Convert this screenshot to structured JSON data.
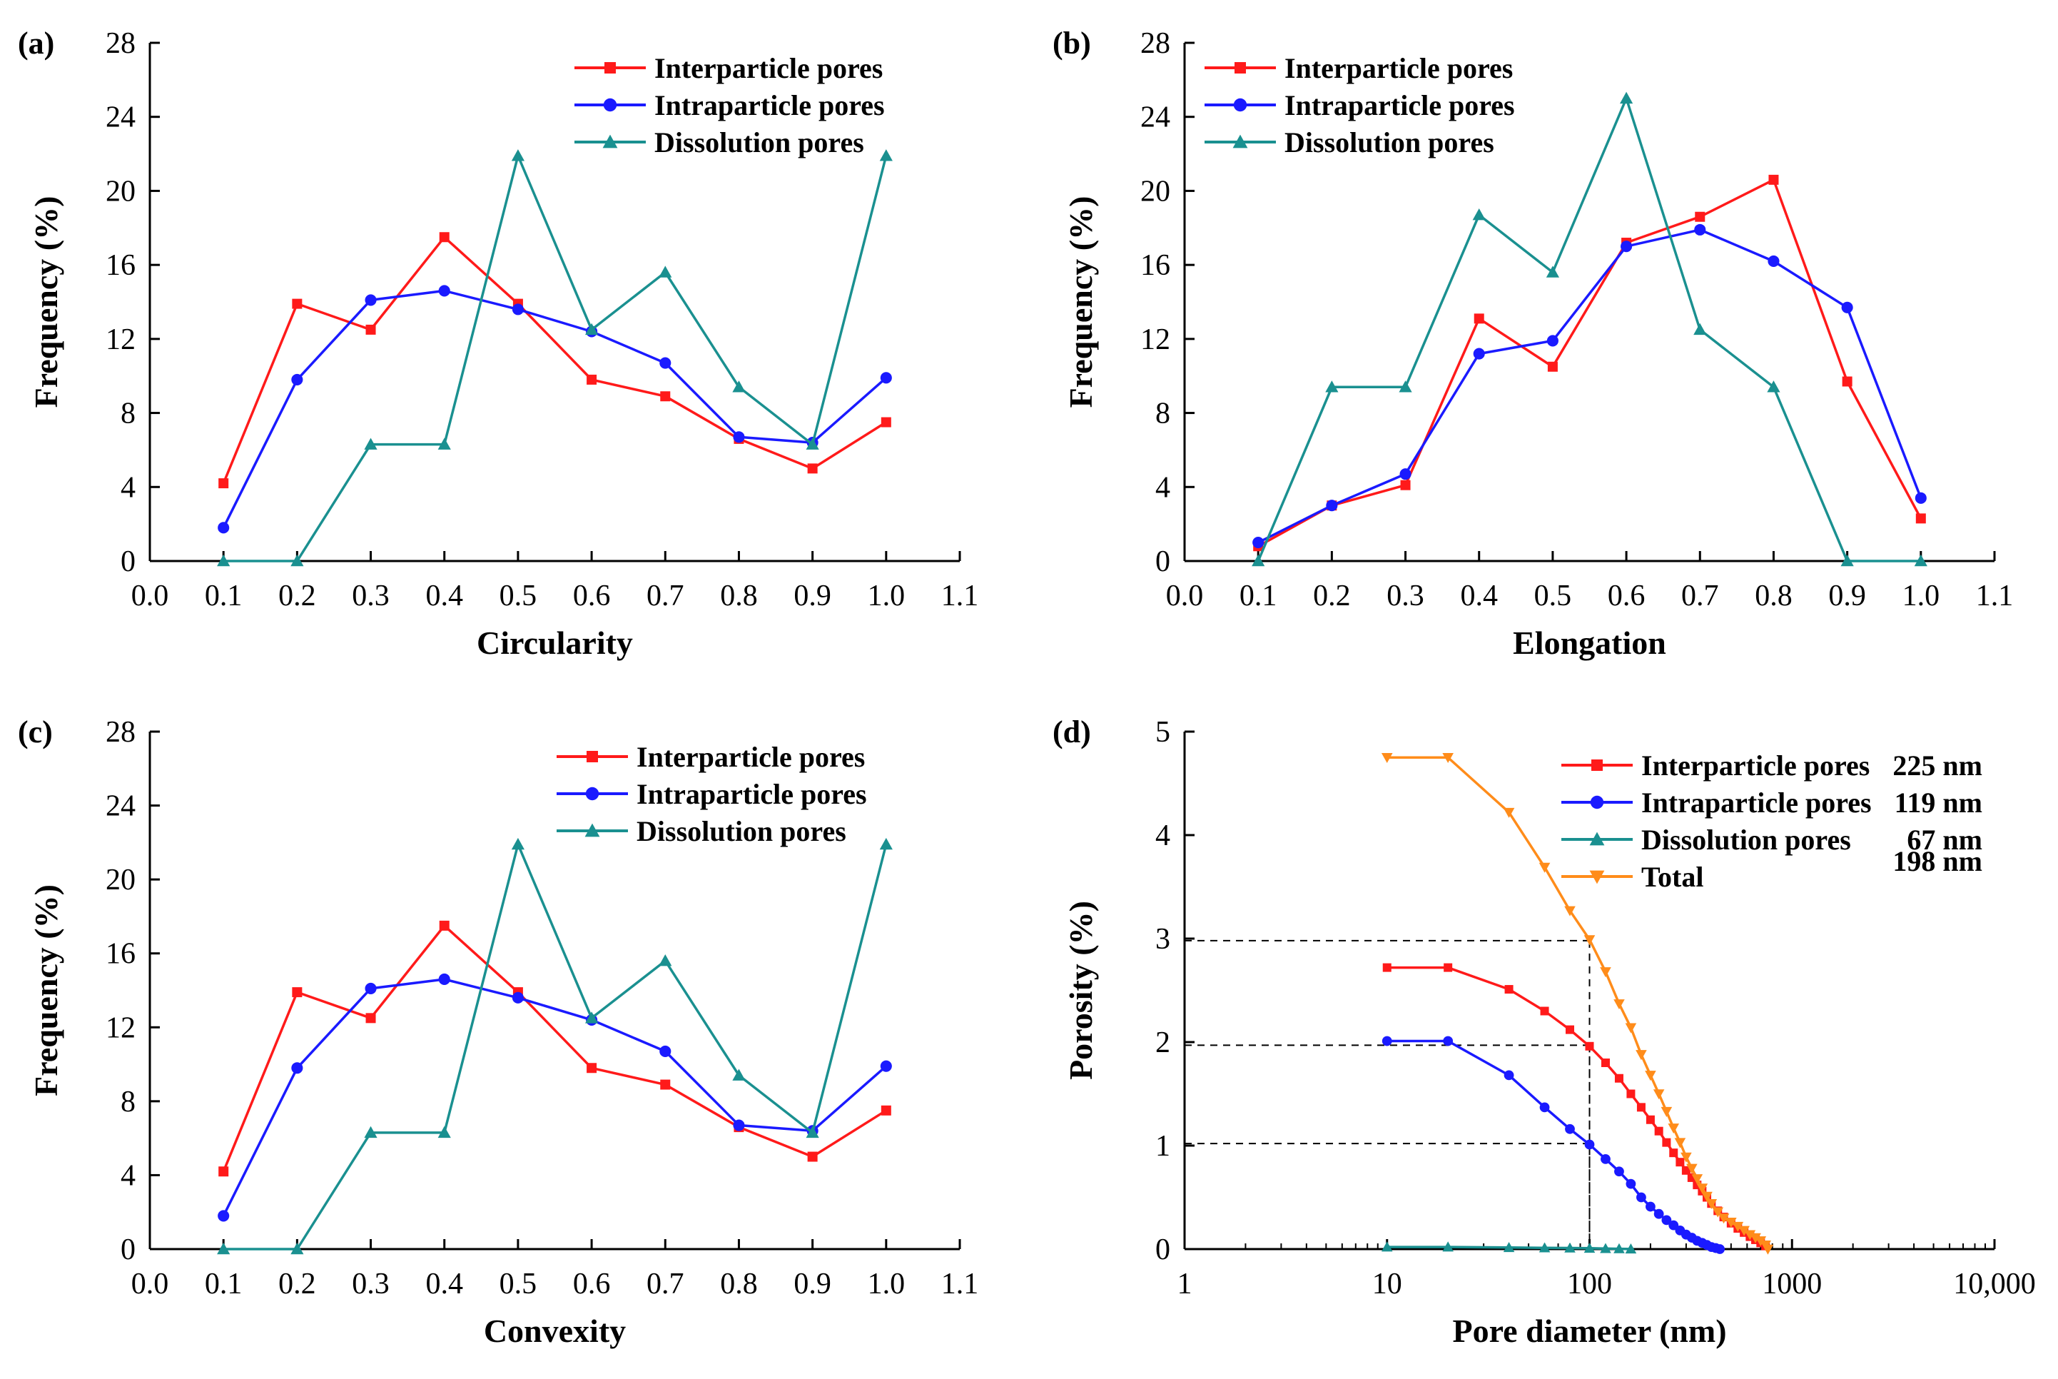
{
  "colors": {
    "interparticle": "#ff1a1a",
    "intraparticle": "#1a1aff",
    "dissolution": "#1a9090",
    "total": "#ff8c1a",
    "axis": "#000000",
    "guide": "#000000"
  },
  "chart_data": [
    {
      "id": "a",
      "panel_label": "(a)",
      "type": "line",
      "xlabel": "Circularity",
      "ylabel": "Frequency (%)",
      "xlim": [
        0,
        1.1
      ],
      "ylim": [
        0,
        28
      ],
      "xticks": [
        0.0,
        0.1,
        0.2,
        0.3,
        0.4,
        0.5,
        0.6,
        0.7,
        0.8,
        0.9,
        1.0,
        1.1
      ],
      "xtick_labels": [
        "0.0",
        "0.1",
        "0.2",
        "0.3",
        "0.4",
        "0.5",
        "0.6",
        "0.7",
        "0.8",
        "0.9",
        "1.0",
        "1.1"
      ],
      "yticks": [
        0,
        4,
        8,
        12,
        16,
        20,
        24,
        28
      ],
      "ytick_labels": [
        "0",
        "4",
        "8",
        "12",
        "16",
        "20",
        "24",
        "28"
      ],
      "legend_position": "top-right",
      "series": [
        {
          "key": "interparticle",
          "name": "Interparticle pores",
          "marker": "square",
          "x": [
            0.1,
            0.2,
            0.3,
            0.4,
            0.5,
            0.6,
            0.7,
            0.8,
            0.9,
            1.0
          ],
          "values": [
            4.2,
            13.9,
            12.5,
            17.5,
            13.9,
            9.8,
            8.9,
            6.6,
            5.0,
            7.5
          ]
        },
        {
          "key": "intraparticle",
          "name": "Intraparticle pores",
          "marker": "circle",
          "x": [
            0.1,
            0.2,
            0.3,
            0.4,
            0.5,
            0.6,
            0.7,
            0.8,
            0.9,
            1.0
          ],
          "values": [
            1.8,
            9.8,
            14.1,
            14.6,
            13.6,
            12.4,
            10.7,
            6.7,
            6.4,
            9.9
          ]
        },
        {
          "key": "dissolution",
          "name": "Dissolution pores",
          "marker": "triangle-up",
          "x": [
            0.1,
            0.2,
            0.3,
            0.4,
            0.5,
            0.6,
            0.7,
            0.8,
            0.9,
            1.0
          ],
          "values": [
            0,
            0,
            6.3,
            6.3,
            21.9,
            12.5,
            15.6,
            9.4,
            6.3,
            21.9
          ]
        }
      ]
    },
    {
      "id": "b",
      "panel_label": "(b)",
      "type": "line",
      "xlabel": "Elongation",
      "ylabel": "Frequency (%)",
      "xlim": [
        0,
        1.1
      ],
      "ylim": [
        0,
        28
      ],
      "xticks": [
        0.0,
        0.1,
        0.2,
        0.3,
        0.4,
        0.5,
        0.6,
        0.7,
        0.8,
        0.9,
        1.0,
        1.1
      ],
      "xtick_labels": [
        "0.0",
        "0.1",
        "0.2",
        "0.3",
        "0.4",
        "0.5",
        "0.6",
        "0.7",
        "0.8",
        "0.9",
        "1.0",
        "1.1"
      ],
      "yticks": [
        0,
        4,
        8,
        12,
        16,
        20,
        24,
        28
      ],
      "ytick_labels": [
        "0",
        "4",
        "8",
        "12",
        "16",
        "20",
        "24",
        "28"
      ],
      "legend_position": "top-left",
      "series": [
        {
          "key": "interparticle",
          "name": "Interparticle pores",
          "marker": "square",
          "x": [
            0.1,
            0.2,
            0.3,
            0.4,
            0.5,
            0.6,
            0.7,
            0.8,
            0.9,
            1.0
          ],
          "values": [
            0.8,
            3.0,
            4.1,
            13.1,
            10.5,
            17.2,
            18.6,
            20.6,
            9.7,
            2.3
          ]
        },
        {
          "key": "intraparticle",
          "name": "Intraparticle pores",
          "marker": "circle",
          "x": [
            0.1,
            0.2,
            0.3,
            0.4,
            0.5,
            0.6,
            0.7,
            0.8,
            0.9,
            1.0
          ],
          "values": [
            1.0,
            3.0,
            4.7,
            11.2,
            11.9,
            17.0,
            17.9,
            16.2,
            13.7,
            3.4
          ]
        },
        {
          "key": "dissolution",
          "name": "Dissolution pores",
          "marker": "triangle-up",
          "x": [
            0.1,
            0.2,
            0.3,
            0.4,
            0.5,
            0.6,
            0.7,
            0.8,
            0.9,
            1.0
          ],
          "values": [
            0,
            9.4,
            9.4,
            18.7,
            15.6,
            25.0,
            12.5,
            9.4,
            0,
            0
          ]
        }
      ]
    },
    {
      "id": "c",
      "panel_label": "(c)",
      "type": "line",
      "xlabel": "Convexity",
      "ylabel": "Frequency (%)",
      "xlim": [
        0,
        1.1
      ],
      "ylim": [
        0,
        28
      ],
      "xticks": [
        0.0,
        0.1,
        0.2,
        0.3,
        0.4,
        0.5,
        0.6,
        0.7,
        0.8,
        0.9,
        1.0,
        1.1
      ],
      "xtick_labels": [
        "0.0",
        "0.1",
        "0.2",
        "0.3",
        "0.4",
        "0.5",
        "0.6",
        "0.7",
        "0.8",
        "0.9",
        "1.0",
        "1.1"
      ],
      "yticks": [
        0,
        4,
        8,
        12,
        16,
        20,
        24,
        28
      ],
      "ytick_labels": [
        "0",
        "4",
        "8",
        "12",
        "16",
        "20",
        "24",
        "28"
      ],
      "legend_position": "top-right",
      "series": [
        {
          "key": "interparticle",
          "name": "Interparticle pores",
          "marker": "square",
          "x": [
            0.1,
            0.2,
            0.3,
            0.4,
            0.5,
            0.6,
            0.7,
            0.8,
            0.9,
            1.0
          ],
          "values": [
            4.2,
            13.9,
            12.5,
            17.5,
            13.9,
            9.8,
            8.9,
            6.6,
            5.0,
            7.5
          ]
        },
        {
          "key": "intraparticle",
          "name": "Intraparticle pores",
          "marker": "circle",
          "x": [
            0.1,
            0.2,
            0.3,
            0.4,
            0.5,
            0.6,
            0.7,
            0.8,
            0.9,
            1.0
          ],
          "values": [
            1.8,
            9.8,
            14.1,
            14.6,
            13.6,
            12.4,
            10.7,
            6.7,
            6.4,
            9.9
          ]
        },
        {
          "key": "dissolution",
          "name": "Dissolution pores",
          "marker": "triangle-up",
          "x": [
            0.1,
            0.2,
            0.3,
            0.4,
            0.5,
            0.6,
            0.7,
            0.8,
            0.9,
            1.0
          ],
          "values": [
            0,
            0,
            6.3,
            6.3,
            21.9,
            12.5,
            15.6,
            9.4,
            6.3,
            21.9
          ]
        }
      ]
    },
    {
      "id": "d",
      "panel_label": "(d)",
      "type": "line",
      "xscale": "log",
      "xlabel": "Pore diameter (nm)",
      "ylabel": "Porosity (%)",
      "xlim": [
        1,
        10000
      ],
      "ylim": [
        0,
        5
      ],
      "xticks": [
        1,
        10,
        100,
        1000,
        10000
      ],
      "xtick_labels": [
        "1",
        "10",
        "100",
        "1000",
        "10,000"
      ],
      "yticks": [
        0,
        1,
        2,
        3,
        4,
        5
      ],
      "ytick_labels": [
        "0",
        "1",
        "2",
        "3",
        "4",
        "5"
      ],
      "legend_position": "top-right",
      "series": [
        {
          "key": "interparticle",
          "name": "Interparticle pores",
          "annotation": "225 nm",
          "marker": "square",
          "x": [
            10,
            20,
            40,
            60,
            80,
            100,
            120,
            140,
            160,
            180,
            200,
            220,
            240,
            260,
            280,
            300,
            320,
            340,
            360,
            380,
            400,
            430,
            460,
            500,
            540,
            580,
            620,
            660,
            700,
            740
          ],
          "values": [
            2.72,
            2.72,
            2.51,
            2.3,
            2.12,
            1.96,
            1.8,
            1.65,
            1.5,
            1.37,
            1.25,
            1.14,
            1.03,
            0.93,
            0.84,
            0.76,
            0.69,
            0.62,
            0.56,
            0.5,
            0.44,
            0.37,
            0.31,
            0.25,
            0.2,
            0.16,
            0.12,
            0.09,
            0.06,
            0.03
          ]
        },
        {
          "key": "intraparticle",
          "name": "Intraparticle pores",
          "annotation": "119 nm",
          "marker": "circle",
          "x": [
            10,
            20,
            40,
            60,
            80,
            100,
            120,
            140,
            160,
            180,
            200,
            220,
            240,
            260,
            280,
            300,
            320,
            340,
            360,
            380,
            400,
            420,
            440
          ],
          "values": [
            2.01,
            2.01,
            1.68,
            1.37,
            1.16,
            1.01,
            0.87,
            0.75,
            0.63,
            0.5,
            0.41,
            0.34,
            0.28,
            0.23,
            0.18,
            0.14,
            0.11,
            0.08,
            0.06,
            0.04,
            0.02,
            0.01,
            0.0
          ]
        },
        {
          "key": "dissolution",
          "name": "Dissolution pores",
          "annotation": "67 nm",
          "marker": "triangle-up",
          "x": [
            10,
            20,
            40,
            60,
            80,
            100,
            120,
            140,
            160
          ],
          "values": [
            0.02,
            0.02,
            0.015,
            0.012,
            0.01,
            0.008,
            0.005,
            0.003,
            0.001
          ]
        },
        {
          "key": "total",
          "name": "Total",
          "annotation": "198 nm",
          "marker": "triangle-down",
          "x": [
            10,
            20,
            40,
            60,
            80,
            100,
            120,
            140,
            160,
            180,
            200,
            220,
            240,
            260,
            280,
            300,
            320,
            340,
            360,
            380,
            400,
            430,
            460,
            500,
            540,
            580,
            620,
            660,
            700,
            740,
            760
          ],
          "values": [
            4.75,
            4.75,
            4.22,
            3.69,
            3.27,
            2.99,
            2.68,
            2.37,
            2.14,
            1.88,
            1.68,
            1.5,
            1.33,
            1.17,
            1.03,
            0.89,
            0.78,
            0.68,
            0.59,
            0.51,
            0.44,
            0.36,
            0.3,
            0.26,
            0.22,
            0.18,
            0.14,
            0.11,
            0.08,
            0.04,
            0.0
          ]
        }
      ],
      "guide_lines": [
        {
          "y": 2.98,
          "x": 100
        },
        {
          "y": 1.97,
          "x": 100
        },
        {
          "y": 1.02,
          "x": 100
        }
      ]
    }
  ]
}
